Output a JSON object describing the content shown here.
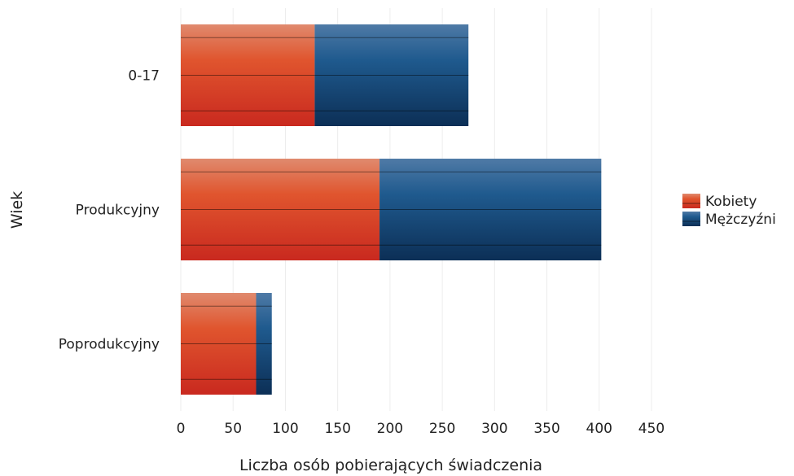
{
  "chart_data": {
    "type": "bar",
    "orientation": "horizontal",
    "stacked": true,
    "categories": [
      "0-17",
      "Produkcyjny",
      "Poprodukcyjny"
    ],
    "series": [
      {
        "name": "Kobiety",
        "values": [
          128,
          190,
          72
        ],
        "color": "#e0492a"
      },
      {
        "name": "Mężczyźni",
        "values": [
          147,
          212,
          15
        ],
        "color": "#1c4f80"
      }
    ],
    "xlabel": "Liczba osób pobierających świadczenia",
    "ylabel": "Wiek",
    "xlim": [
      0,
      450
    ],
    "xticks": [
      "0",
      "50",
      "100",
      "150",
      "200",
      "250",
      "300",
      "350",
      "400",
      "450"
    ],
    "grid": "vertical",
    "legend_position": "right"
  }
}
